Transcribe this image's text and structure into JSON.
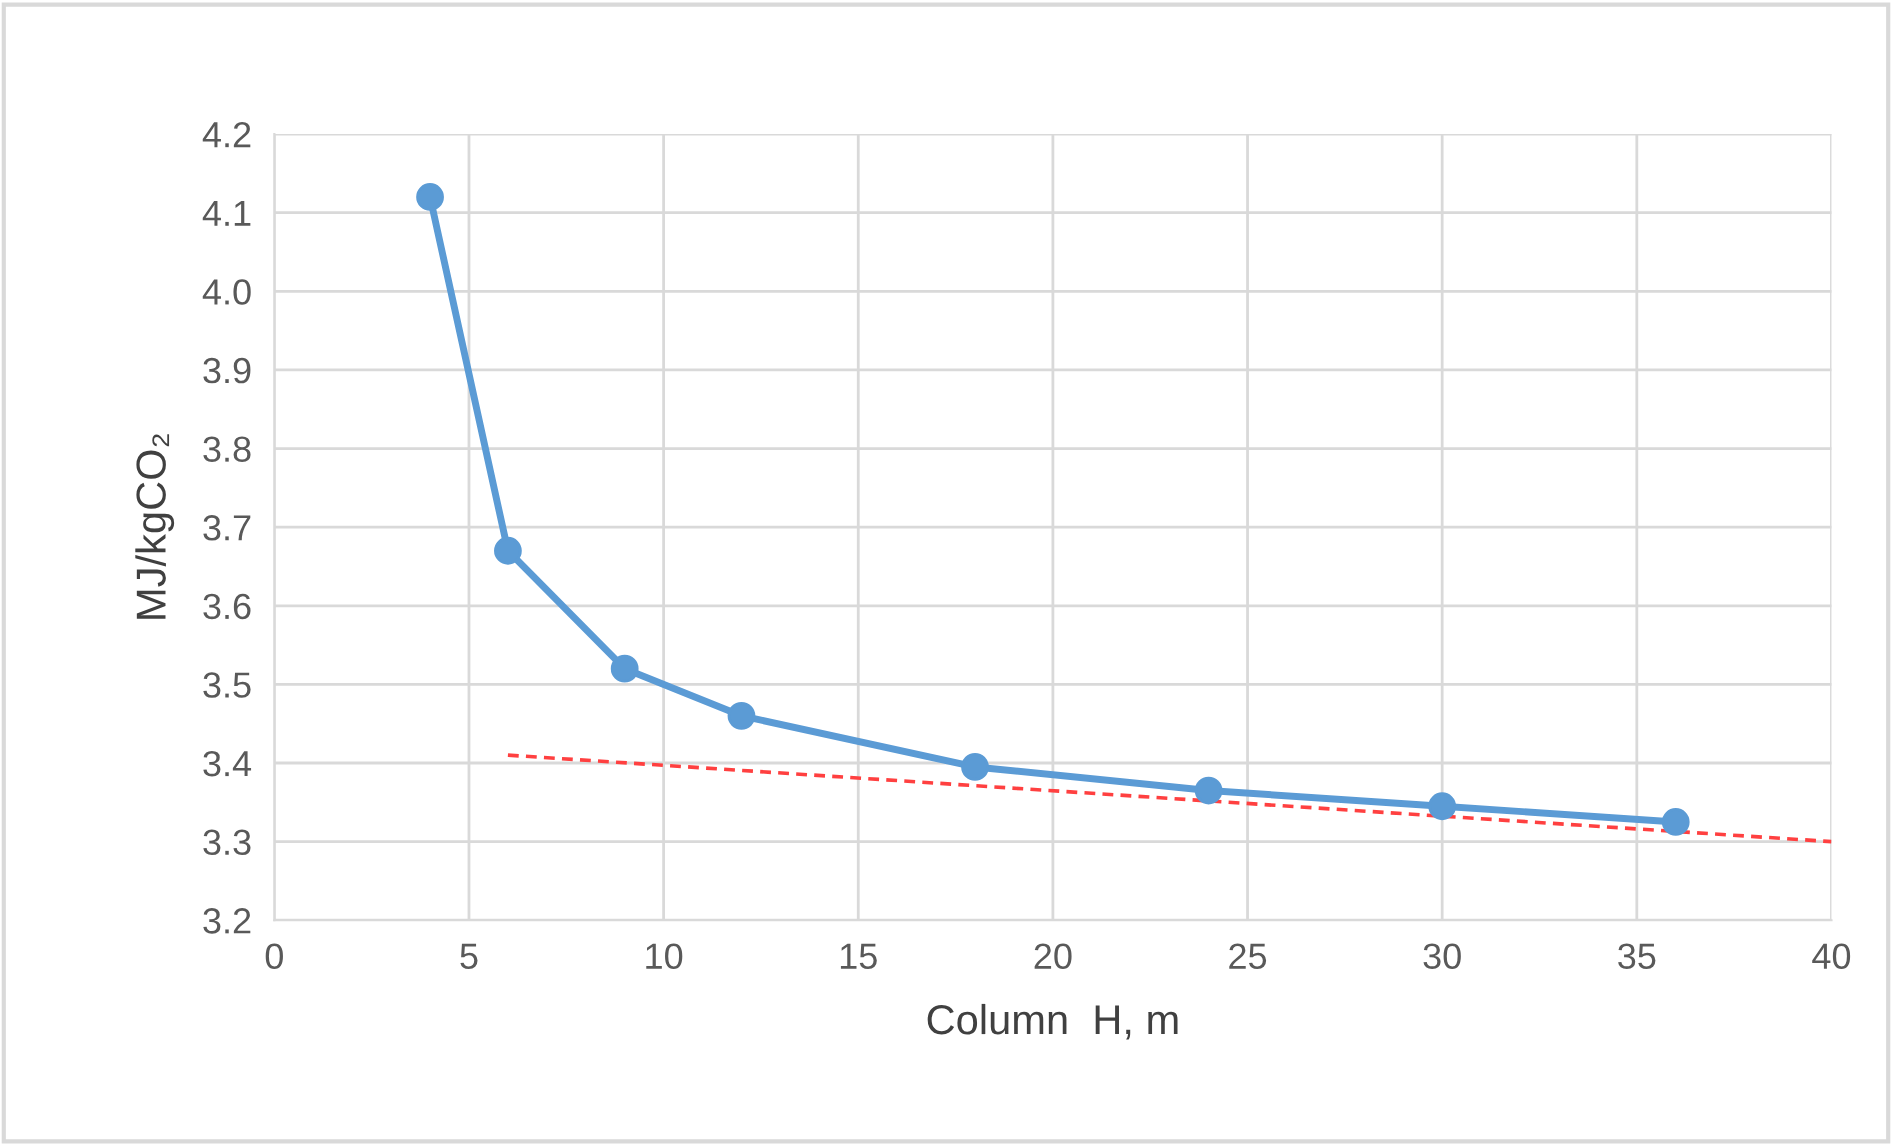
{
  "chart_data": {
    "type": "line",
    "xlabel": "Column  H, m",
    "ylabel": "MJ/kgCO₂",
    "x": [
      4,
      6,
      9,
      12,
      18,
      24,
      30,
      36
    ],
    "series": [
      {
        "color": "#5b9bd5",
        "values": [
          4.12,
          3.67,
          3.52,
          3.46,
          3.395,
          3.365,
          3.345,
          3.325
        ],
        "marker": "circle",
        "line_style": "solid"
      },
      {
        "type": "line",
        "x": [
          6,
          40
        ],
        "color": "#ff4040",
        "values": [
          3.41,
          3.3
        ],
        "marker": "none",
        "line_style": "dashed"
      }
    ],
    "xlim": [
      0,
      40
    ],
    "xticks": [
      0,
      5,
      10,
      15,
      20,
      25,
      30,
      35,
      40
    ],
    "ylim": [
      3.2,
      4.2
    ],
    "yticks": [
      3.2,
      3.3,
      3.4,
      3.5,
      3.6,
      3.7,
      3.8,
      3.9,
      {
        "value": 4,
        "label": "4.0"
      },
      4.1,
      4.2
    ],
    "grid": true
  }
}
